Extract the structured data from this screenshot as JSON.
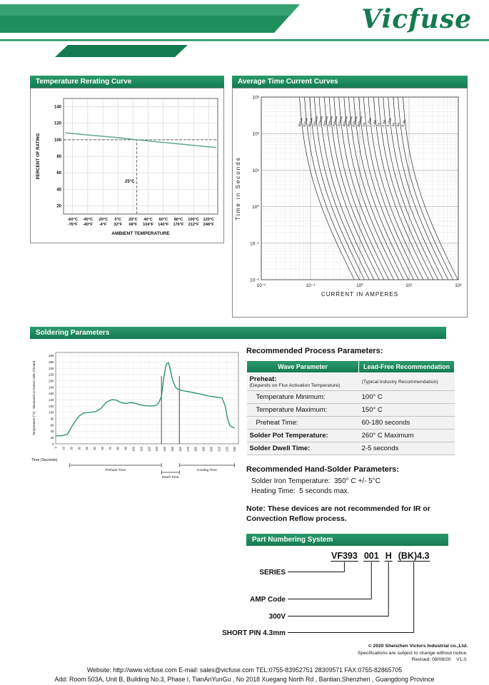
{
  "brand": {
    "logo": "Vicfuse",
    "accent": "#17825A"
  },
  "panels": {
    "rerating_title": "Temperature Rerating Curve",
    "tcc_title": "Average Time Current Curves",
    "soldering_title": "Soldering Parameters",
    "part_numbering_title": "Part Numbering System"
  },
  "process_params": {
    "heading": "Recommended Process Parameters:",
    "table": {
      "headers": [
        "Wave Parameter",
        "Lead-Free Recommendation"
      ],
      "rows": [
        {
          "param": "Preheat:",
          "param_note": "(Depends on Flux Activation Temperature)",
          "value": "(Typical Industry Recommendation)",
          "style": "preheat"
        },
        {
          "param": "Temperature Minimum:",
          "value": "100° C",
          "style": "indent"
        },
        {
          "param": "Temperature Maximum:",
          "value": "150° C",
          "style": "indent"
        },
        {
          "param": "Preheat Time:",
          "value": "60-180 seconds",
          "style": "indent"
        },
        {
          "param": "Solder Pot Temperature:",
          "value": "260° C Maximum",
          "style": "strong"
        },
        {
          "param": "Solder Dwell Time:",
          "value": "2-5 seconds",
          "style": "strong"
        }
      ]
    },
    "hand_solder_heading": "Recommended Hand-Solder Parameters:",
    "hand_solder_lines": [
      "Solder Iron Temperature:  350° C +/- 5°C",
      "Heating Time:  5 seconds max."
    ],
    "note": "Note:  These devices are not recommended for IR or Convection Reflow process."
  },
  "part_numbering": {
    "code_parts": [
      "VF393",
      "001",
      "H",
      "(BK)4.3"
    ],
    "labels": [
      "SERIES",
      "AMP Code",
      "300V",
      "SHORT PIN 4.3mm"
    ]
  },
  "footer": {
    "copyright": "© 2020 Shenzhen Victors Industrial co.,Ltd.",
    "notice": "Specifications are subject to change without notice.",
    "revised": "Revised: 09/08/20    V1.0.",
    "contact": "Website: http://www.vicfuse.com E-mail: sales@vicfuse.com TEL:0755-83952751 28309571  FAX:0755-82865705",
    "address": "Add: Room 503A, Unit B, Building No.3, Phase I, TianAnYunGu , No 2018 Xuegang North Rd , Bantian,Shenzhen , Guangdong Province"
  },
  "chart_data": [
    {
      "id": "rerating",
      "type": "line",
      "title": "Temperature Rerating Curve",
      "xlabel": "AMBIENT TEMPERATURE",
      "ylabel": "PERCENT OF RATING",
      "xlim": [
        -72,
        132
      ],
      "ylim": [
        10,
        150
      ],
      "x_values": [
        -60,
        -40,
        -20,
        0,
        20,
        40,
        60,
        80,
        100,
        120
      ],
      "x_tick_c": [
        "-60°C",
        "-40°C",
        "-20°C",
        "0°C",
        "20°C",
        "40°C",
        "60°C",
        "80°C",
        "100°C",
        "120°C"
      ],
      "x_tick_f": [
        "-76°F",
        "-40°F",
        "-4°F",
        "32°F",
        "68°F",
        "104°F",
        "140°F",
        "176°F",
        "212°F",
        "248°F"
      ],
      "y_ticks": [
        20,
        40,
        60,
        80,
        100,
        120,
        140
      ],
      "grid": true,
      "reference_line_y": 100,
      "reference_line_x": 25,
      "reference_label": "25°C",
      "series": [
        {
          "name": "percent-of-rating",
          "color": "#5FA888",
          "x": [
            -70,
            -60,
            -40,
            -20,
            0,
            20,
            25,
            40,
            60,
            80,
            100,
            120,
            130
          ],
          "y": [
            108.3,
            107.5,
            105.8,
            104.2,
            102.6,
            100.4,
            100,
            98.6,
            96.8,
            95,
            93.2,
            91.5,
            90.7
          ]
        }
      ]
    },
    {
      "id": "time-current",
      "type": "line",
      "scale": "log-log",
      "title": "Average Time Current Curves",
      "xlabel": "CURRENT IN AMPERES",
      "ylabel": "Time in Seconds",
      "xlim": [
        0.01,
        100
      ],
      "ylim": [
        0.01,
        1000
      ],
      "x_tick_values": [
        0.01,
        0.1,
        1,
        10,
        100
      ],
      "x_tick_labels": [
        "10⁻²",
        "10⁻¹",
        "10⁰",
        "10¹",
        "10²"
      ],
      "y_tick_values": [
        1000,
        100,
        10,
        1,
        0.1,
        0.01
      ],
      "y_tick_labels": [
        "10³",
        "10²",
        "10¹",
        "10⁰",
        "10⁻¹",
        "10⁻²"
      ],
      "grid": true,
      "ratings_amps": [
        0.05,
        0.063,
        0.08,
        0.1,
        0.125,
        0.16,
        0.2,
        0.25,
        0.315,
        0.4,
        0.5,
        0.63,
        0.8,
        1,
        1.25,
        1.6,
        2,
        2.5,
        3.15,
        4,
        5,
        6.3
      ],
      "labels": [
        "50mA",
        "63mA",
        "80mA",
        "100mA",
        "125mA",
        "160mA",
        "200mA",
        "250mA",
        "315mA",
        "400mA",
        "500mA",
        "630mA",
        "800mA",
        "1A",
        "1.25A",
        "1.6A",
        "2A",
        "2.5A",
        "3.15A",
        "4A",
        "5A",
        "6.3A"
      ]
    },
    {
      "id": "solder-profile",
      "type": "line",
      "title": "Soldering Parameters",
      "xlabel": "Time (Seconds)",
      "ylabel": "Temperature (°C) - Measured on bottom side of board",
      "xlim": [
        0,
        235
      ],
      "ylim": [
        0,
        290
      ],
      "x_ticks": [
        0,
        10,
        20,
        30,
        40,
        50,
        60,
        70,
        80,
        90,
        100,
        110,
        120,
        130,
        140,
        150,
        160,
        170,
        180,
        190,
        200,
        210,
        220,
        230
      ],
      "y_ticks": [
        0,
        20,
        40,
        60,
        80,
        100,
        120,
        140,
        160,
        180,
        200,
        220,
        240,
        260,
        280
      ],
      "series": [
        {
          "name": "board-temperature",
          "color": "#1E8F5D",
          "x": [
            0,
            8,
            15,
            22,
            30,
            36,
            45,
            52,
            58,
            65,
            72,
            78,
            84,
            90,
            96,
            102,
            108,
            115,
            122,
            128,
            132,
            136,
            139,
            142,
            145,
            147,
            150,
            154,
            158,
            165,
            172,
            180,
            188,
            196,
            204,
            210,
            214,
            218,
            221,
            224,
            228,
            230
          ],
          "y": [
            25,
            26,
            30,
            60,
            88,
            98,
            100,
            103,
            112,
            132,
            140,
            139,
            131,
            128,
            131,
            129,
            124,
            121,
            120,
            121,
            128,
            150,
            210,
            252,
            258,
            240,
            205,
            180,
            172,
            168,
            165,
            161,
            157,
            152,
            149,
            147,
            146,
            120,
            80,
            58,
            52,
            50
          ]
        }
      ],
      "markers_x": [
        136,
        159
      ],
      "regions": [
        {
          "label": "Preheat Time",
          "from": 18,
          "to": 136
        },
        {
          "label": "Dwell Time",
          "from": 136,
          "to": 159
        },
        {
          "label": "Cooling Time",
          "from": 159,
          "to": 230
        }
      ]
    }
  ]
}
